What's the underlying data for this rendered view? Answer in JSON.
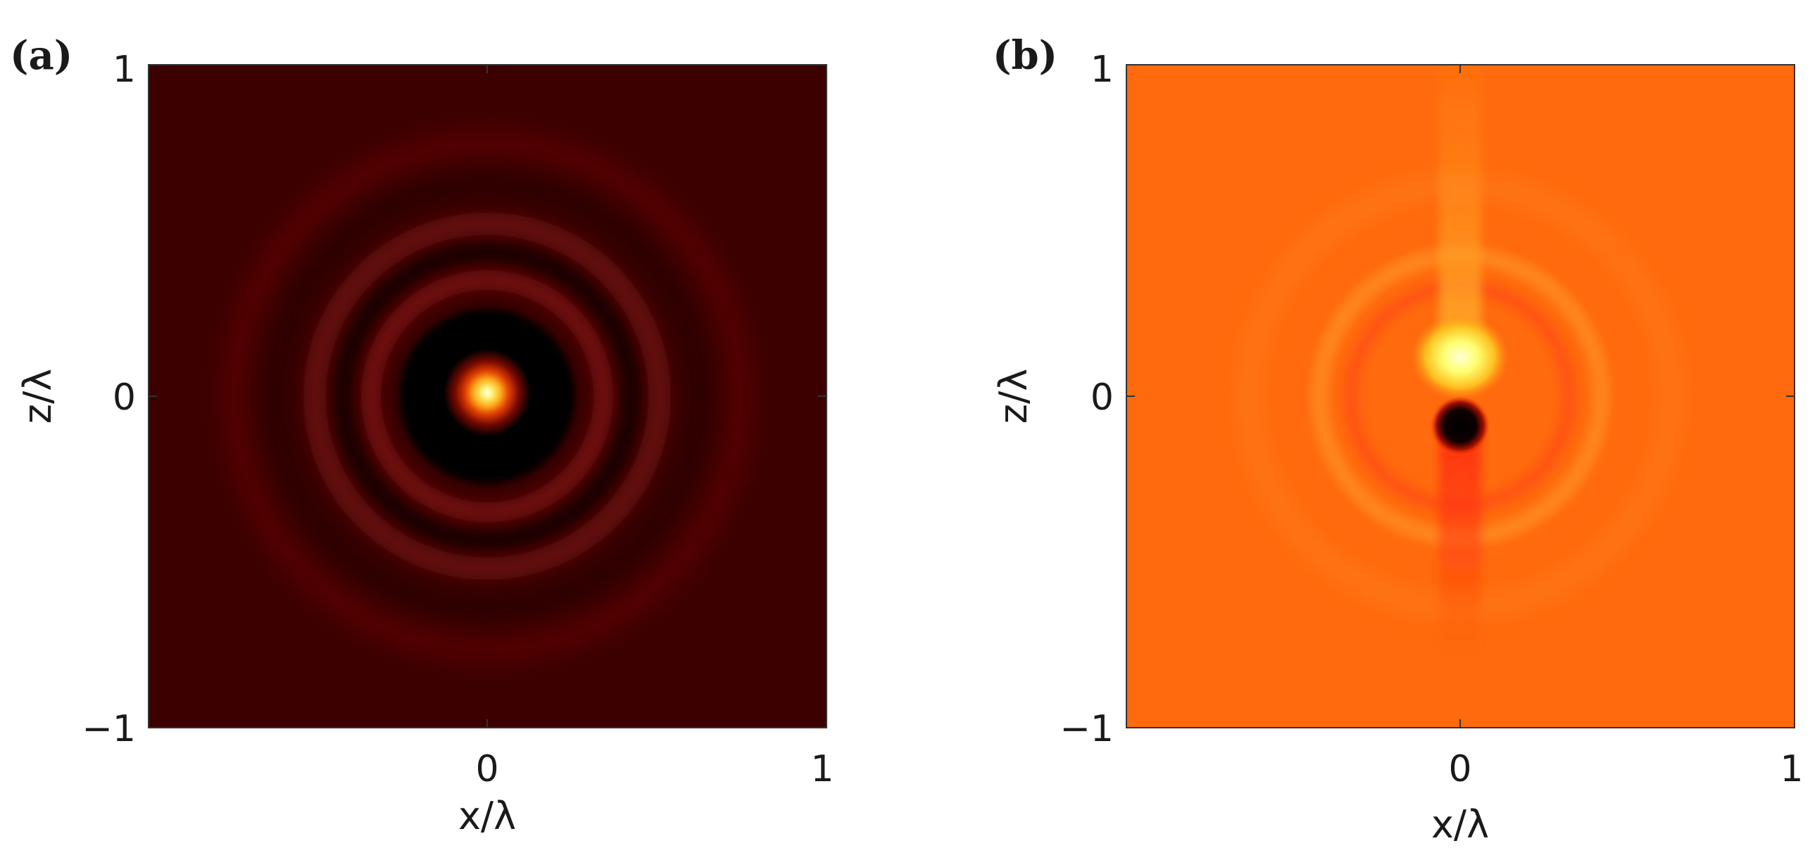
{
  "chart_data": [
    {
      "type": "heatmap",
      "panel_label": "(a)",
      "xlabel": "x/λ",
      "ylabel": "z/λ",
      "xlim": [
        -1,
        1
      ],
      "ylim": [
        -1,
        1
      ],
      "xticks": [
        "0",
        "1"
      ],
      "yticks": [
        "1",
        "0",
        "−1"
      ],
      "background_color": "#3d0000",
      "features": [
        {
          "description": "bright central spot",
          "x": 0,
          "z": 0,
          "radius": 0.12,
          "color": "#ffffe0"
        },
        {
          "description": "dark ring",
          "x": 0,
          "z": 0,
          "radius": 0.21,
          "color": "#000000"
        },
        {
          "description": "faint ring",
          "x": 0,
          "z": 0,
          "radius": 0.35,
          "color": "#5a0606"
        },
        {
          "description": "faint ring",
          "x": 0,
          "z": 0,
          "radius": 0.55,
          "color": "#520404"
        }
      ]
    },
    {
      "type": "heatmap",
      "panel_label": "(b)",
      "xlabel": "x/λ",
      "ylabel": "z/λ",
      "xlim": [
        -1,
        1
      ],
      "ylim": [
        -1,
        1
      ],
      "xticks": [
        "0",
        "1"
      ],
      "yticks": [
        "1",
        "0",
        "−1"
      ],
      "background_color": "#ff6a0e",
      "features": [
        {
          "description": "bright spot",
          "x": 0,
          "z": 0.11,
          "radius": 0.13,
          "color": "#ffffc8"
        },
        {
          "description": "dark spot",
          "x": 0,
          "z": -0.09,
          "radius": 0.06,
          "color": "#000000"
        },
        {
          "description": "light streak upward",
          "x": 0,
          "z_range": [
            0.2,
            1
          ],
          "color": "#ff9a2a"
        },
        {
          "description": "red streak downward",
          "x": 0,
          "z_range": [
            -0.6,
            -0.15
          ],
          "color": "#ff3b10"
        }
      ]
    }
  ]
}
